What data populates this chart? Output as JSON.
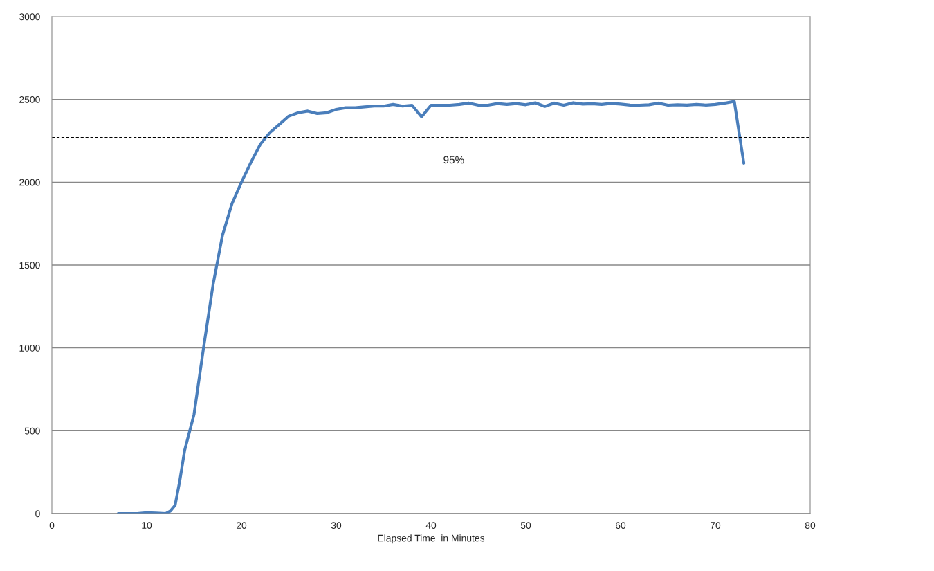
{
  "chart_data": {
    "type": "line",
    "xlabel": "Elapsed Time  in Minutes",
    "x": [
      7,
      8,
      9,
      10,
      11,
      12,
      12.5,
      13,
      13.5,
      14,
      15,
      16,
      17,
      18,
      19,
      20,
      21,
      22,
      23,
      24,
      25,
      26,
      27,
      28,
      29,
      30,
      31,
      32,
      33,
      34,
      35,
      36,
      37,
      38,
      39,
      40,
      41,
      42,
      43,
      44,
      45,
      46,
      47,
      48,
      49,
      50,
      51,
      52,
      53,
      54,
      55,
      56,
      57,
      58,
      59,
      60,
      61,
      62,
      63,
      64,
      65,
      66,
      67,
      68,
      69,
      70,
      71,
      72,
      72.5,
      73
    ],
    "series": [
      {
        "color": "#4a7ebb",
        "values": [
          0,
          0,
          0,
          5,
          3,
          0,
          15,
          50,
          200,
          380,
          600,
          1000,
          1380,
          1680,
          1870,
          2000,
          2120,
          2230,
          2300,
          2350,
          2400,
          2420,
          2430,
          2415,
          2420,
          2440,
          2450,
          2450,
          2455,
          2460,
          2460,
          2470,
          2460,
          2465,
          2395,
          2465,
          2465,
          2465,
          2470,
          2478,
          2465,
          2465,
          2475,
          2470,
          2475,
          2468,
          2480,
          2458,
          2478,
          2465,
          2480,
          2472,
          2474,
          2470,
          2476,
          2472,
          2466,
          2465,
          2468,
          2478,
          2465,
          2468,
          2466,
          2470,
          2466,
          2470,
          2478,
          2488,
          2300,
          2115
        ]
      }
    ],
    "xlim": [
      0,
      80
    ],
    "xticks": [
      0,
      10,
      20,
      30,
      40,
      50,
      60,
      70,
      80
    ],
    "ylim": [
      0,
      3000
    ],
    "yticks": [
      0,
      500,
      1000,
      1500,
      2000,
      2500,
      3000
    ],
    "grid": "y",
    "marker": "none",
    "line_style": "solid",
    "annotations": [
      "95%"
    ],
    "ref_lines": [
      {
        "axis": "y",
        "value": 2270,
        "color": "#000000",
        "line_style": "dashed"
      }
    ]
  }
}
